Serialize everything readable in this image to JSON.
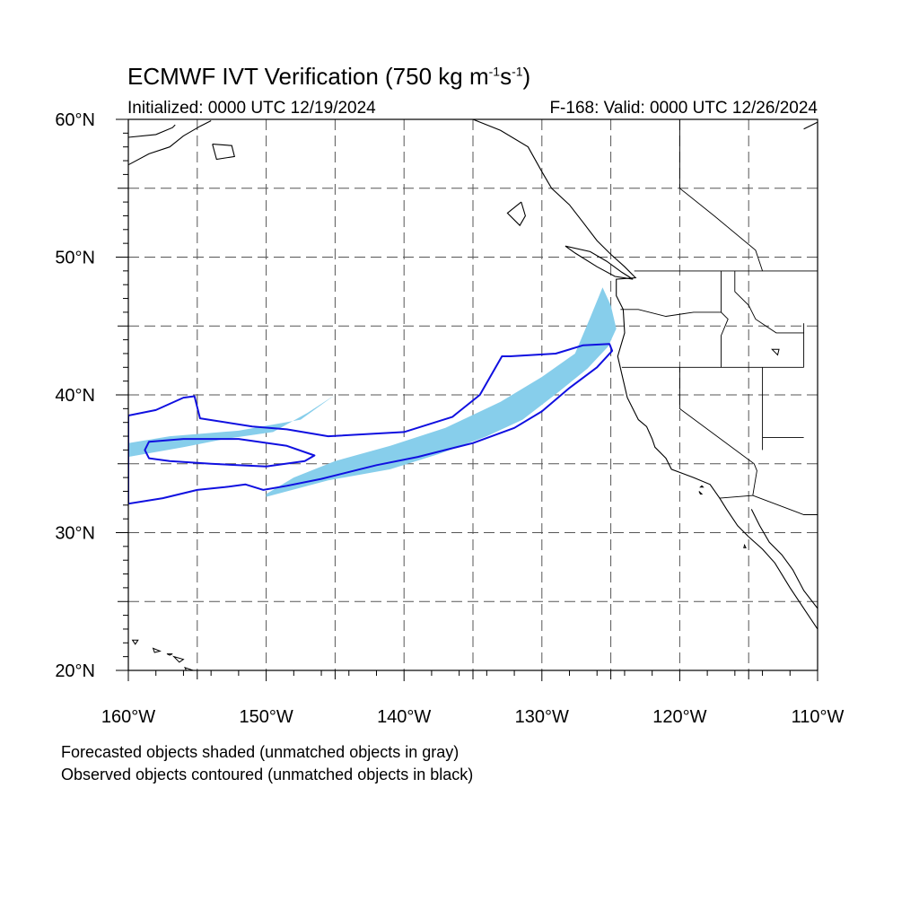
{
  "title": {
    "main": "ECMWF IVT Verification (750 kg m",
    "sup1": "-1",
    "mid": "s",
    "sup2": "-1",
    "end": ")"
  },
  "subtitle": {
    "left": "Initialized: 0000 UTC 12/19/2024",
    "right": "F-168: Valid: 0000 UTC 12/26/2024"
  },
  "axes": {
    "lon_range": [
      -160,
      -110
    ],
    "lat_range": [
      20,
      60
    ],
    "lon_ticks": [
      {
        "value": -160,
        "label": "160°W"
      },
      {
        "value": -150,
        "label": "150°W"
      },
      {
        "value": -140,
        "label": "140°W"
      },
      {
        "value": -130,
        "label": "130°W"
      },
      {
        "value": -120,
        "label": "120°W"
      },
      {
        "value": -110,
        "label": "110°W"
      }
    ],
    "lat_ticks": [
      {
        "value": 20,
        "label": "20°N"
      },
      {
        "value": 30,
        "label": "30°N"
      },
      {
        "value": 40,
        "label": "40°N"
      },
      {
        "value": 50,
        "label": "50°N"
      },
      {
        "value": 60,
        "label": "60°N"
      }
    ],
    "grid_lon": [
      -155,
      -150,
      -145,
      -140,
      -135,
      -130,
      -125,
      -120,
      -115
    ],
    "grid_lat": [
      25,
      30,
      35,
      40,
      45,
      50,
      55
    ]
  },
  "legend_notes": [
    "Forecasted objects shaded (unmatched objects in gray)",
    "Observed objects contoured (unmatched objects in black)"
  ],
  "colors": {
    "forecast_fill": "#87ceeb",
    "observed_contour": "#1010e0",
    "coastline": "#000000",
    "grid": "#555555"
  },
  "map_data": {
    "forecast_objects": [
      [
        [
          -160,
          36.5
        ],
        [
          -157,
          37
        ],
        [
          -152,
          37.4
        ],
        [
          -147.5,
          38.2
        ],
        [
          -145,
          40
        ],
        [
          -147,
          38.7
        ],
        [
          -149.5,
          37.3
        ],
        [
          -153,
          36.8
        ],
        [
          -156,
          36.2
        ],
        [
          -160,
          35.5
        ]
      ],
      [
        [
          -150,
          32.8
        ],
        [
          -148,
          34
        ],
        [
          -145,
          35.2
        ],
        [
          -141,
          36.3
        ],
        [
          -137,
          37.6
        ],
        [
          -133,
          39.5
        ],
        [
          -130,
          41.3
        ],
        [
          -127.6,
          43
        ],
        [
          -126.5,
          45.6
        ],
        [
          -125.6,
          47.8
        ],
        [
          -125,
          46.5
        ],
        [
          -124.6,
          44.8
        ],
        [
          -125.2,
          43.5
        ],
        [
          -126.7,
          41.9
        ],
        [
          -128.8,
          40.2
        ],
        [
          -131.4,
          38.2
        ],
        [
          -134,
          37
        ],
        [
          -137.5,
          35.7
        ],
        [
          -141,
          34.6
        ],
        [
          -145.5,
          33.8
        ],
        [
          -148.5,
          33
        ],
        [
          -150,
          32.6
        ]
      ]
    ],
    "observed_contours": [
      [
        [
          -160,
          38.5
        ],
        [
          -158,
          38.9
        ],
        [
          -156,
          39.8
        ],
        [
          -155.2,
          39.9
        ],
        [
          -154.8,
          38.3
        ],
        [
          -151,
          37.7
        ],
        [
          -148.5,
          37.5
        ],
        [
          -145.5,
          37
        ],
        [
          -140,
          37.3
        ],
        [
          -136.5,
          38.4
        ],
        [
          -134.5,
          40
        ],
        [
          -132.9,
          42.8
        ],
        [
          -132.3,
          42.8
        ],
        [
          -129,
          43
        ],
        [
          -127,
          43.6
        ],
        [
          -125.1,
          43.7
        ],
        [
          -124.9,
          43.2
        ],
        [
          -126,
          42
        ],
        [
          -128,
          40.5
        ],
        [
          -130,
          38.8
        ],
        [
          -132,
          37.6
        ],
        [
          -135,
          36.5
        ],
        [
          -139,
          35.5
        ],
        [
          -142,
          34.9
        ],
        [
          -146,
          33.9
        ],
        [
          -148.5,
          33.4
        ],
        [
          -150.2,
          33.1
        ],
        [
          -151.5,
          33.5
        ],
        [
          -153,
          33.3
        ],
        [
          -155,
          33.1
        ],
        [
          -157.5,
          32.5
        ],
        [
          -160,
          32.1
        ]
      ],
      [
        [
          -158.5,
          36.6
        ],
        [
          -156,
          36.8
        ],
        [
          -152,
          36.8
        ],
        [
          -148.5,
          36.3
        ],
        [
          -146.5,
          35.6
        ],
        [
          -147.2,
          35.2
        ],
        [
          -150,
          34.8
        ],
        [
          -154,
          35
        ],
        [
          -157,
          35.2
        ],
        [
          -158.5,
          35.4
        ],
        [
          -158.8,
          36
        ]
      ]
    ],
    "coastlines": [
      [
        [
          -135,
          60
        ],
        [
          -133,
          59.2
        ],
        [
          -131,
          58
        ],
        [
          -130,
          56.2
        ],
        [
          -129.3,
          55
        ],
        [
          -128,
          53.8
        ],
        [
          -127,
          52.5
        ],
        [
          -126,
          51.2
        ],
        [
          -125,
          50.2
        ],
        [
          -124,
          49.3
        ],
        [
          -123.2,
          48.5
        ],
        [
          -124.6,
          48.4
        ],
        [
          -124.6,
          47.2
        ],
        [
          -124.1,
          46.2
        ],
        [
          -124,
          44.5
        ],
        [
          -124.5,
          42.8
        ],
        [
          -124.2,
          41.5
        ],
        [
          -123.8,
          39.8
        ],
        [
          -123,
          38.2
        ],
        [
          -122.4,
          37.7
        ],
        [
          -122,
          36.8
        ],
        [
          -121.8,
          36.2
        ],
        [
          -121,
          35.4
        ],
        [
          -120.6,
          34.6
        ],
        [
          -119,
          34
        ],
        [
          -117.8,
          33.5
        ],
        [
          -117.1,
          32.5
        ],
        [
          -116.6,
          31.7
        ],
        [
          -115.8,
          30.5
        ],
        [
          -115,
          29.7
        ],
        [
          -114,
          28.8
        ],
        [
          -113.1,
          27.8
        ],
        [
          -112,
          26
        ],
        [
          -111,
          24.5
        ],
        [
          -110,
          23
        ]
      ],
      [
        [
          -114.8,
          31.7
        ],
        [
          -114.2,
          30.5
        ],
        [
          -113.5,
          29.3
        ],
        [
          -112.6,
          28.4
        ],
        [
          -111.8,
          27.3
        ],
        [
          -111,
          25.8
        ],
        [
          -110,
          24.5
        ]
      ],
      [
        [
          -131.5,
          54
        ],
        [
          -132.5,
          53.2
        ],
        [
          -131.6,
          52.3
        ],
        [
          -131.2,
          53
        ],
        [
          -131.5,
          54
        ]
      ],
      [
        [
          -128.3,
          50.8
        ],
        [
          -126.5,
          50.4
        ],
        [
          -125.3,
          49.7
        ],
        [
          -124.2,
          48.9
        ],
        [
          -123.4,
          48.4
        ],
        [
          -124.7,
          48.6
        ],
        [
          -126,
          49.3
        ],
        [
          -127.6,
          50.3
        ],
        [
          -128.3,
          50.8
        ]
      ],
      [
        [
          -160,
          58.7
        ],
        [
          -158,
          58.9
        ],
        [
          -156.8,
          59.4
        ],
        [
          -156.6,
          59.6
        ]
      ],
      [
        [
          -160,
          56.7
        ],
        [
          -158.5,
          57.5
        ],
        [
          -157,
          58
        ],
        [
          -156,
          58.8
        ],
        [
          -154.8,
          59.5
        ],
        [
          -154,
          59.9
        ]
      ],
      [
        [
          -153.9,
          58.2
        ],
        [
          -152.5,
          58.1
        ],
        [
          -152.3,
          57.3
        ],
        [
          -153.6,
          57.1
        ],
        [
          -153.9,
          58.2
        ]
      ],
      [
        [
          -111,
          59.3
        ],
        [
          -110,
          59.8
        ]
      ]
    ],
    "islands": [
      [
        [
          -159.7,
          22.2
        ],
        [
          -159.3,
          22.2
        ],
        [
          -159.5,
          21.9
        ],
        [
          -159.7,
          22.2
        ]
      ],
      [
        [
          -158.2,
          21.6
        ],
        [
          -157.7,
          21.4
        ],
        [
          -158.1,
          21.3
        ],
        [
          -158.2,
          21.6
        ]
      ],
      [
        [
          -157.2,
          21.2
        ],
        [
          -156.8,
          21.2
        ],
        [
          -157,
          21.1
        ],
        [
          -157.2,
          21.2
        ]
      ],
      [
        [
          -156.7,
          21
        ],
        [
          -156,
          20.8
        ],
        [
          -156.3,
          20.6
        ],
        [
          -156.7,
          21
        ]
      ],
      [
        [
          -155.9,
          20.2
        ],
        [
          -155,
          19.9
        ],
        [
          -155.5,
          19.4
        ],
        [
          -155.9,
          20.2
        ]
      ],
      [
        [
          -118.4,
          33.4
        ],
        [
          -118.3,
          33.3
        ],
        [
          -118.5,
          33.3
        ],
        [
          -118.4,
          33.4
        ]
      ],
      [
        [
          -118.6,
          33
        ],
        [
          -118.4,
          32.8
        ],
        [
          -118.5,
          32.8
        ],
        [
          -118.6,
          33
        ]
      ],
      [
        [
          -115.3,
          29.1
        ],
        [
          -115.2,
          28.9
        ],
        [
          -115.35,
          28.9
        ],
        [
          -115.3,
          29.1
        ]
      ],
      [
        [
          -113.3,
          43.3
        ],
        [
          -112.8,
          43.3
        ],
        [
          -112.9,
          42.9
        ],
        [
          -113.3,
          43.3
        ]
      ]
    ],
    "borders": [
      [
        [
          -123.3,
          49
        ],
        [
          -110,
          49
        ]
      ],
      [
        [
          -124.3,
          46.2
        ],
        [
          -123,
          46.2
        ],
        [
          -121,
          45.7
        ],
        [
          -119,
          46
        ],
        [
          -117,
          46
        ]
      ],
      [
        [
          -124.2,
          42
        ],
        [
          -111,
          42
        ]
      ],
      [
        [
          -117,
          49
        ],
        [
          -117,
          46
        ],
        [
          -116.5,
          45.5
        ],
        [
          -117,
          44.3
        ],
        [
          -117,
          42
        ]
      ],
      [
        [
          -120,
          42
        ],
        [
          -120,
          39
        ],
        [
          -114.6,
          35
        ],
        [
          -114.4,
          34.5
        ],
        [
          -114.7,
          32.7
        ],
        [
          -117.1,
          32.5
        ]
      ],
      [
        [
          -114,
          42
        ],
        [
          -114,
          36
        ]
      ],
      [
        [
          -114,
          36.9
        ],
        [
          -111,
          36.9
        ]
      ],
      [
        [
          -114.7,
          32.7
        ],
        [
          -111,
          31.3
        ],
        [
          -110,
          31.3
        ]
      ],
      [
        [
          -111,
          45.2
        ],
        [
          -111,
          42
        ]
      ],
      [
        [
          -116,
          49
        ],
        [
          -116,
          47.5
        ],
        [
          -115,
          46.5
        ],
        [
          -114.5,
          45.5
        ],
        [
          -113,
          44.5
        ],
        [
          -111,
          44.5
        ]
      ],
      [
        [
          -120,
          60
        ],
        [
          -120,
          55
        ],
        [
          -117.5,
          53
        ],
        [
          -114.5,
          50.5
        ],
        [
          -114,
          49
        ]
      ]
    ]
  }
}
